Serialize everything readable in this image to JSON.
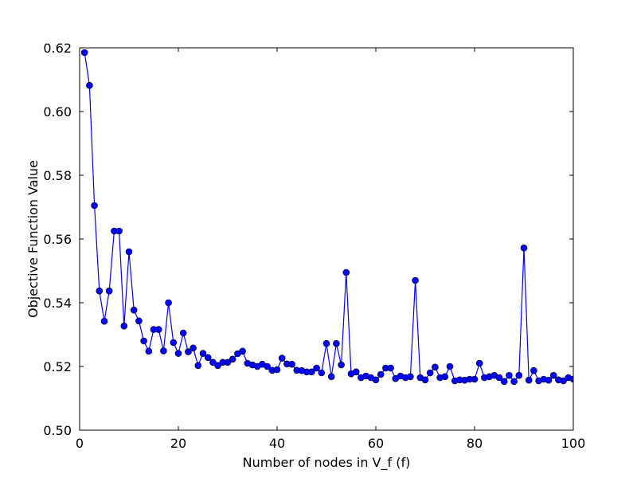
{
  "chart_data": {
    "type": "line",
    "title": "",
    "xlabel": "Number of nodes in V_f (f)",
    "ylabel": "Objective Function Value",
    "xlim": [
      0,
      100
    ],
    "ylim": [
      0.5,
      0.62
    ],
    "xticks": [
      0,
      20,
      40,
      60,
      80,
      100
    ],
    "xtick_labels": [
      "0",
      "20",
      "40",
      "60",
      "80",
      "100"
    ],
    "yticks": [
      0.5,
      0.52,
      0.54,
      0.56,
      0.58,
      0.6,
      0.62
    ],
    "ytick_labels": [
      "0.50",
      "0.52",
      "0.54",
      "0.56",
      "0.58",
      "0.60",
      "0.62"
    ],
    "grid": false,
    "legend": "none",
    "series": [
      {
        "color": "#0000ff",
        "marker": "circle",
        "x": [
          1,
          2,
          3,
          4,
          5,
          6,
          7,
          8,
          9,
          10,
          11,
          12,
          13,
          14,
          15,
          16,
          17,
          18,
          19,
          20,
          21,
          22,
          23,
          24,
          25,
          26,
          27,
          28,
          29,
          30,
          31,
          32,
          33,
          34,
          35,
          36,
          37,
          38,
          39,
          40,
          41,
          42,
          43,
          44,
          45,
          46,
          47,
          48,
          49,
          50,
          51,
          52,
          53,
          54,
          55,
          56,
          57,
          58,
          59,
          60,
          61,
          62,
          63,
          64,
          65,
          66,
          67,
          68,
          69,
          70,
          71,
          72,
          73,
          74,
          75,
          76,
          77,
          78,
          79,
          80,
          81,
          82,
          83,
          84,
          85,
          86,
          87,
          88,
          89,
          90,
          91,
          92,
          93,
          94,
          95,
          96,
          97,
          98,
          99,
          100
        ],
        "y": [
          0.6185,
          0.6082,
          0.5705,
          0.5437,
          0.5342,
          0.5437,
          0.5625,
          0.5625,
          0.5327,
          0.556,
          0.5377,
          0.5343,
          0.528,
          0.5248,
          0.5316,
          0.5316,
          0.5249,
          0.54,
          0.5275,
          0.5241,
          0.5305,
          0.5246,
          0.5258,
          0.5203,
          0.5241,
          0.5228,
          0.5213,
          0.5203,
          0.5213,
          0.5213,
          0.5223,
          0.524,
          0.5248,
          0.521,
          0.5205,
          0.52,
          0.5207,
          0.52,
          0.5188,
          0.519,
          0.5226,
          0.5208,
          0.5207,
          0.5188,
          0.5187,
          0.5183,
          0.5183,
          0.5195,
          0.518,
          0.5272,
          0.5168,
          0.5272,
          0.5205,
          0.5495,
          0.5177,
          0.5183,
          0.5165,
          0.517,
          0.5165,
          0.5158,
          0.5175,
          0.5195,
          0.5195,
          0.5162,
          0.517,
          0.5165,
          0.5168,
          0.547,
          0.5165,
          0.5158,
          0.518,
          0.5198,
          0.5165,
          0.5168,
          0.52,
          0.5155,
          0.5158,
          0.5157,
          0.516,
          0.516,
          0.521,
          0.5165,
          0.5168,
          0.5172,
          0.5165,
          0.5153,
          0.5172,
          0.5153,
          0.5172,
          0.5572,
          0.5157,
          0.5187,
          0.5155,
          0.516,
          0.5157,
          0.5172,
          0.5158,
          0.5155,
          0.5165,
          0.516
        ]
      }
    ]
  }
}
